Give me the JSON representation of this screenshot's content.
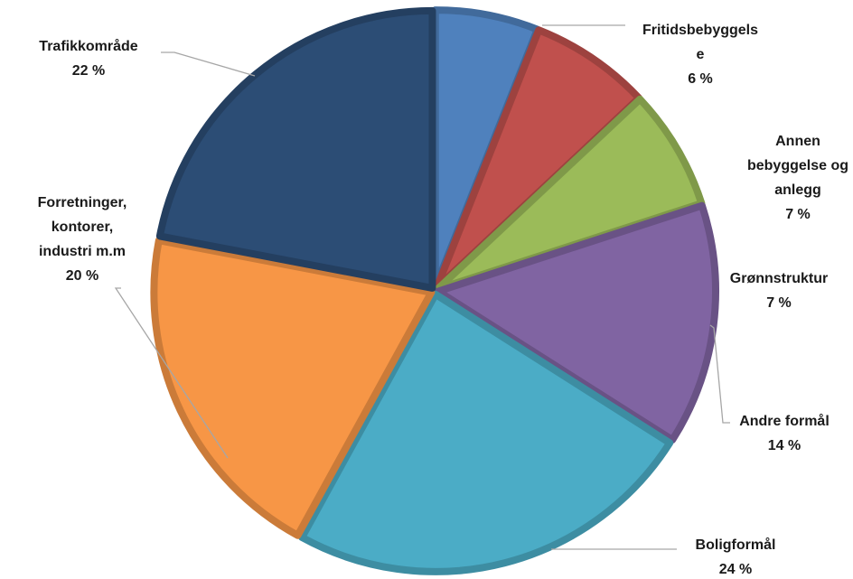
{
  "chart_data": {
    "type": "pie",
    "title": "",
    "slices": [
      {
        "name": "Fritidsbebyggelse",
        "label_lines": [
          "Fritidsbebyggels",
          "e"
        ],
        "value_label": "6 %",
        "value": 6,
        "color": "#4F81BD"
      },
      {
        "name": "Annen bebyggelse og anlegg",
        "label_lines": [
          "Annen",
          "bebyggelse og",
          "anlegg"
        ],
        "value_label": "7 %",
        "value": 7,
        "color": "#C0504D"
      },
      {
        "name": "Grønnstruktur",
        "label_lines": [
          "Grønnstruktur"
        ],
        "value_label": "7 %",
        "value": 7,
        "color": "#9BBB59"
      },
      {
        "name": "Andre formål",
        "label_lines": [
          "Andre formål"
        ],
        "value_label": "14 %",
        "value": 14,
        "color": "#8064A2"
      },
      {
        "name": "Boligformål",
        "label_lines": [
          "Boligformål"
        ],
        "value_label": "24 %",
        "value": 24,
        "color": "#4BACC6"
      },
      {
        "name": "Forretninger, kontorer, industri m.m",
        "label_lines": [
          "Forretninger,",
          "kontorer,",
          "industri m.m"
        ],
        "value_label": "20 %",
        "value": 20,
        "color": "#F79646"
      },
      {
        "name": "Trafikkområde",
        "label_lines": [
          "Trafikkområde"
        ],
        "value_label": "22 %",
        "value": 22,
        "color": "#2C4D75"
      }
    ],
    "start": "12 o'clock",
    "direction": "clockwise",
    "legend": "none"
  }
}
